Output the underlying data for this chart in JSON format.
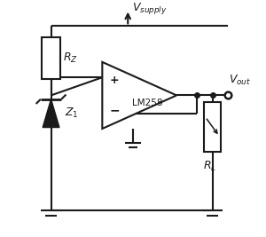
{
  "bg_color": "#ffffff",
  "line_color": "#1a1a1a",
  "line_width": 1.5,
  "fig_width": 3.0,
  "fig_height": 2.67,
  "dpi": 100,
  "xlim": [
    0,
    10
  ],
  "ylim": [
    0,
    8.9
  ],
  "rz_label": "$R_Z$",
  "z1_label": "$Z_1$",
  "lm258_label": "LM258",
  "vsupply_label": "$V_{supply}$",
  "vout_label": "$V_{out}$",
  "rl_label": "$R_L$",
  "plus_label": "+",
  "minus_label": "−"
}
